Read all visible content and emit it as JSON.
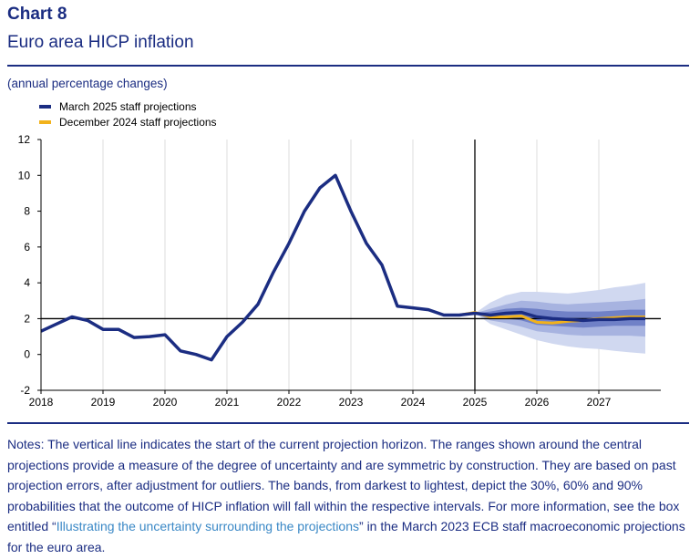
{
  "header": {
    "label": "Chart 8",
    "title": "Euro area HICP inflation",
    "subtitle": "(annual percentage changes)"
  },
  "colors": {
    "march": "#1b2d82",
    "december": "#f2b21b",
    "band90": "#d0d8f0",
    "band60": "#a7b3e0",
    "band30": "#7081c7",
    "axis": "#000000",
    "grid": "#dddddd"
  },
  "chart_data": {
    "type": "line",
    "title": "Euro area HICP inflation",
    "ylabel": "(annual percentage changes)",
    "xlim": [
      2018,
      2028
    ],
    "ylim": [
      -2,
      12
    ],
    "yticks": [
      12,
      10,
      8,
      6,
      4,
      2,
      0,
      -2
    ],
    "xticks": [
      "2018",
      "2019",
      "2020",
      "2021",
      "2022",
      "2023",
      "2024",
      "2025",
      "2026",
      "2027"
    ],
    "grid": "vertical",
    "legend": [
      "March 2025 staff projections",
      "December 2024 staff projections"
    ],
    "projection_start": 2025,
    "reference_line": 2,
    "series": [
      {
        "name": "March 2025 staff projections",
        "x": [
          2018,
          2018.25,
          2018.5,
          2018.75,
          2019,
          2019.25,
          2019.5,
          2019.75,
          2020,
          2020.25,
          2020.5,
          2020.75,
          2021,
          2021.25,
          2021.5,
          2021.75,
          2022,
          2022.25,
          2022.5,
          2022.75,
          2023,
          2023.25,
          2023.5,
          2023.75,
          2024,
          2024.25,
          2024.5,
          2024.75,
          2025,
          2025.25,
          2025.5,
          2025.75,
          2026,
          2026.25,
          2026.5,
          2026.75,
          2027,
          2027.25,
          2027.5,
          2027.75
        ],
        "values": [
          1.3,
          1.7,
          2.1,
          1.9,
          1.4,
          1.4,
          0.95,
          1.0,
          1.1,
          0.2,
          0.0,
          -0.3,
          1.0,
          1.8,
          2.8,
          4.6,
          6.2,
          8.0,
          9.3,
          10.0,
          8.0,
          6.2,
          5.0,
          2.7,
          2.6,
          2.5,
          2.2,
          2.2,
          2.3,
          2.2,
          2.3,
          2.35,
          2.1,
          2.0,
          1.95,
          1.9,
          1.95,
          1.95,
          2.0,
          2.0
        ]
      },
      {
        "name": "December 2024 staff projections",
        "x": [
          2024.75,
          2025,
          2025.25,
          2025.5,
          2025.75,
          2026,
          2026.25,
          2026.5,
          2026.75,
          2027,
          2027.25,
          2027.5,
          2027.75
        ],
        "values": [
          2.2,
          2.35,
          2.1,
          2.1,
          2.15,
          1.8,
          1.75,
          1.85,
          1.9,
          2.0,
          2.05,
          2.1,
          2.1
        ]
      }
    ],
    "bands": {
      "x": [
        2025,
        2025.25,
        2025.5,
        2025.75,
        2026,
        2026.25,
        2026.5,
        2026.75,
        2027,
        2027.25,
        2027.5,
        2027.75
      ],
      "p90": {
        "lower": [
          2.3,
          1.7,
          1.4,
          1.1,
          0.8,
          0.6,
          0.45,
          0.35,
          0.3,
          0.2,
          0.12,
          0.05
        ],
        "upper": [
          2.3,
          2.9,
          3.3,
          3.5,
          3.5,
          3.45,
          3.4,
          3.5,
          3.6,
          3.75,
          3.85,
          4.0
        ]
      },
      "p60": {
        "lower": [
          2.3,
          1.9,
          1.75,
          1.55,
          1.3,
          1.2,
          1.1,
          1.05,
          1.05,
          1.05,
          1.05,
          1.0
        ],
        "upper": [
          2.3,
          2.55,
          2.8,
          3.0,
          2.95,
          2.85,
          2.8,
          2.85,
          2.9,
          2.95,
          3.0,
          3.1
        ]
      },
      "p30": {
        "lower": [
          2.3,
          2.05,
          2.0,
          1.9,
          1.65,
          1.6,
          1.55,
          1.5,
          1.55,
          1.6,
          1.6,
          1.6
        ],
        "upper": [
          2.3,
          2.4,
          2.55,
          2.6,
          2.55,
          2.45,
          2.4,
          2.4,
          2.4,
          2.45,
          2.5,
          2.5
        ]
      }
    }
  },
  "notes": {
    "before": "Notes: The vertical line indicates the start of the current projection horizon. The ranges shown around the central projections provide a measure of the degree of uncertainty and are symmetric by construction. They are based on past projection errors, after adjustment for outliers. The bands, from darkest to lightest, depict the 30%, 60% and 90% probabilities that the outcome of HICP inflation will fall within the respective intervals. For more information, see the box entitled “",
    "link": "Illustrating the uncertainty surrounding the projections",
    "after": "” in the March 2023 ECB staff macroeconomic projections for the euro area."
  }
}
